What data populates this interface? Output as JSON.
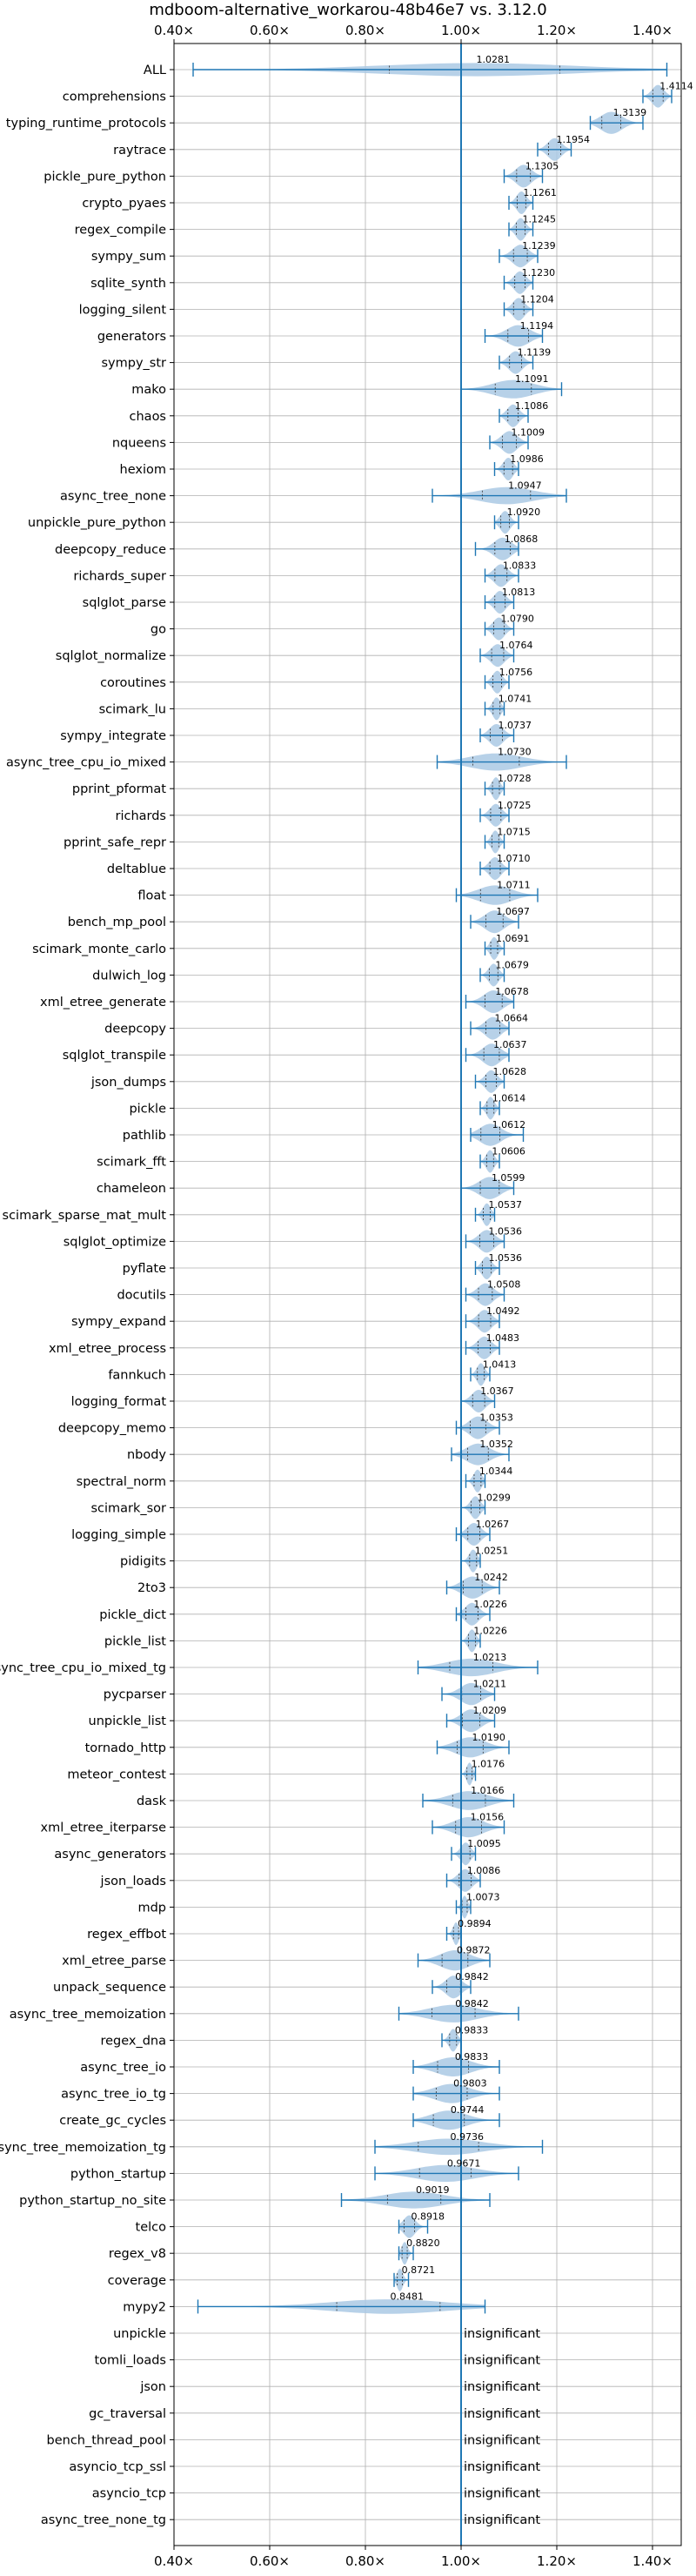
{
  "chart_data": {
    "type": "violin",
    "title": "mdboom-alternative_workarou-48b46e7 vs. 3.12.0",
    "xlim": [
      0.4,
      1.46
    ],
    "xticks": [
      0.4,
      0.6,
      0.8,
      1.0,
      1.2,
      1.4
    ],
    "xtick_labels": [
      "0.40×",
      "0.60×",
      "0.80×",
      "1.00×",
      "1.20×",
      "1.40×"
    ],
    "reference_line": 1.0,
    "grid": true,
    "insignificant_text": "insignificant",
    "colors": {
      "violin": "#aac9e4",
      "line": "#1f77b4"
    },
    "benchmarks": [
      {
        "name": "ALL",
        "value": 1.0281,
        "label": "1.0281",
        "min": 0.44,
        "max": 1.43
      },
      {
        "name": "comprehensions",
        "value": 1.4114,
        "label": "1.4114",
        "min": 1.38,
        "max": 1.44
      },
      {
        "name": "typing_runtime_protocols",
        "value": 1.3139,
        "label": "1.3139",
        "min": 1.27,
        "max": 1.38
      },
      {
        "name": "raytrace",
        "value": 1.1954,
        "label": "1.1954",
        "min": 1.16,
        "max": 1.23
      },
      {
        "name": "pickle_pure_python",
        "value": 1.1305,
        "label": "1.1305",
        "min": 1.09,
        "max": 1.17
      },
      {
        "name": "crypto_pyaes",
        "value": 1.1261,
        "label": "1.1261",
        "min": 1.1,
        "max": 1.15
      },
      {
        "name": "regex_compile",
        "value": 1.1245,
        "label": "1.1245",
        "min": 1.1,
        "max": 1.15
      },
      {
        "name": "sympy_sum",
        "value": 1.1239,
        "label": "1.1239",
        "min": 1.08,
        "max": 1.16
      },
      {
        "name": "sqlite_synth",
        "value": 1.123,
        "label": "1.1230",
        "min": 1.09,
        "max": 1.15
      },
      {
        "name": "logging_silent",
        "value": 1.1204,
        "label": "1.1204",
        "min": 1.09,
        "max": 1.15
      },
      {
        "name": "generators",
        "value": 1.1194,
        "label": "1.1194",
        "min": 1.05,
        "max": 1.17
      },
      {
        "name": "sympy_str",
        "value": 1.1139,
        "label": "1.1139",
        "min": 1.08,
        "max": 1.15
      },
      {
        "name": "mako",
        "value": 1.1091,
        "label": "1.1091",
        "min": 1.0,
        "max": 1.21
      },
      {
        "name": "chaos",
        "value": 1.1086,
        "label": "1.1086",
        "min": 1.08,
        "max": 1.14
      },
      {
        "name": "nqueens",
        "value": 1.1009,
        "label": "1.1009",
        "min": 1.06,
        "max": 1.14
      },
      {
        "name": "hexiom",
        "value": 1.0986,
        "label": "1.0986",
        "min": 1.07,
        "max": 1.12
      },
      {
        "name": "async_tree_none",
        "value": 1.0947,
        "label": "1.0947",
        "min": 0.94,
        "max": 1.22
      },
      {
        "name": "unpickle_pure_python",
        "value": 1.092,
        "label": "1.0920",
        "min": 1.07,
        "max": 1.12
      },
      {
        "name": "deepcopy_reduce",
        "value": 1.0868,
        "label": "1.0868",
        "min": 1.03,
        "max": 1.12
      },
      {
        "name": "richards_super",
        "value": 1.0833,
        "label": "1.0833",
        "min": 1.05,
        "max": 1.12
      },
      {
        "name": "sqlglot_parse",
        "value": 1.0813,
        "label": "1.0813",
        "min": 1.05,
        "max": 1.11
      },
      {
        "name": "go",
        "value": 1.079,
        "label": "1.0790",
        "min": 1.05,
        "max": 1.11
      },
      {
        "name": "sqlglot_normalize",
        "value": 1.0764,
        "label": "1.0764",
        "min": 1.04,
        "max": 1.11
      },
      {
        "name": "coroutines",
        "value": 1.0756,
        "label": "1.0756",
        "min": 1.05,
        "max": 1.1
      },
      {
        "name": "scimark_lu",
        "value": 1.0741,
        "label": "1.0741",
        "min": 1.05,
        "max": 1.09
      },
      {
        "name": "sympy_integrate",
        "value": 1.0737,
        "label": "1.0737",
        "min": 1.04,
        "max": 1.11
      },
      {
        "name": "async_tree_cpu_io_mixed",
        "value": 1.073,
        "label": "1.0730",
        "min": 0.95,
        "max": 1.22
      },
      {
        "name": "pprint_pformat",
        "value": 1.0728,
        "label": "1.0728",
        "min": 1.05,
        "max": 1.09
      },
      {
        "name": "richards",
        "value": 1.0725,
        "label": "1.0725",
        "min": 1.04,
        "max": 1.1
      },
      {
        "name": "pprint_safe_repr",
        "value": 1.0715,
        "label": "1.0715",
        "min": 1.05,
        "max": 1.09
      },
      {
        "name": "deltablue",
        "value": 1.071,
        "label": "1.0710",
        "min": 1.04,
        "max": 1.1
      },
      {
        "name": "float",
        "value": 1.0711,
        "label": "1.0711",
        "min": 0.99,
        "max": 1.16
      },
      {
        "name": "bench_mp_pool",
        "value": 1.0697,
        "label": "1.0697",
        "min": 1.02,
        "max": 1.12
      },
      {
        "name": "scimark_monte_carlo",
        "value": 1.0691,
        "label": "1.0691",
        "min": 1.05,
        "max": 1.09
      },
      {
        "name": "dulwich_log",
        "value": 1.0679,
        "label": "1.0679",
        "min": 1.04,
        "max": 1.09
      },
      {
        "name": "xml_etree_generate",
        "value": 1.0678,
        "label": "1.0678",
        "min": 1.01,
        "max": 1.11
      },
      {
        "name": "deepcopy",
        "value": 1.0664,
        "label": "1.0664",
        "min": 1.02,
        "max": 1.1
      },
      {
        "name": "sqlglot_transpile",
        "value": 1.0637,
        "label": "1.0637",
        "min": 1.01,
        "max": 1.1
      },
      {
        "name": "json_dumps",
        "value": 1.0628,
        "label": "1.0628",
        "min": 1.03,
        "max": 1.09
      },
      {
        "name": "pickle",
        "value": 1.0614,
        "label": "1.0614",
        "min": 1.04,
        "max": 1.08
      },
      {
        "name": "pathlib",
        "value": 1.0612,
        "label": "1.0612",
        "min": 1.02,
        "max": 1.13
      },
      {
        "name": "scimark_fft",
        "value": 1.0606,
        "label": "1.0606",
        "min": 1.04,
        "max": 1.08
      },
      {
        "name": "chameleon",
        "value": 1.0599,
        "label": "1.0599",
        "min": 1.0,
        "max": 1.11
      },
      {
        "name": "scimark_sparse_mat_mult",
        "value": 1.0537,
        "label": "1.0537",
        "min": 1.03,
        "max": 1.07
      },
      {
        "name": "sqlglot_optimize",
        "value": 1.0536,
        "label": "1.0536",
        "min": 1.01,
        "max": 1.09
      },
      {
        "name": "pyflate",
        "value": 1.0536,
        "label": "1.0536",
        "min": 1.03,
        "max": 1.08
      },
      {
        "name": "docutils",
        "value": 1.0508,
        "label": "1.0508",
        "min": 1.01,
        "max": 1.09
      },
      {
        "name": "sympy_expand",
        "value": 1.0492,
        "label": "1.0492",
        "min": 1.01,
        "max": 1.08
      },
      {
        "name": "xml_etree_process",
        "value": 1.0483,
        "label": "1.0483",
        "min": 1.01,
        "max": 1.08
      },
      {
        "name": "fannkuch",
        "value": 1.0413,
        "label": "1.0413",
        "min": 1.02,
        "max": 1.06
      },
      {
        "name": "logging_format",
        "value": 1.0367,
        "label": "1.0367",
        "min": 1.0,
        "max": 1.07
      },
      {
        "name": "deepcopy_memo",
        "value": 1.0353,
        "label": "1.0353",
        "min": 0.99,
        "max": 1.08
      },
      {
        "name": "nbody",
        "value": 1.0352,
        "label": "1.0352",
        "min": 0.98,
        "max": 1.1
      },
      {
        "name": "spectral_norm",
        "value": 1.0344,
        "label": "1.0344",
        "min": 1.01,
        "max": 1.05
      },
      {
        "name": "scimark_sor",
        "value": 1.0299,
        "label": "1.0299",
        "min": 1.0,
        "max": 1.05
      },
      {
        "name": "logging_simple",
        "value": 1.0267,
        "label": "1.0267",
        "min": 0.99,
        "max": 1.06
      },
      {
        "name": "pidigits",
        "value": 1.0251,
        "label": "1.0251",
        "min": 1.0,
        "max": 1.04
      },
      {
        "name": "2to3",
        "value": 1.0242,
        "label": "1.0242",
        "min": 0.97,
        "max": 1.08
      },
      {
        "name": "pickle_dict",
        "value": 1.0226,
        "label": "1.0226",
        "min": 0.99,
        "max": 1.06
      },
      {
        "name": "pickle_list",
        "value": 1.0226,
        "label": "1.0226",
        "min": 1.0,
        "max": 1.04
      },
      {
        "name": "async_tree_cpu_io_mixed_tg",
        "value": 1.0213,
        "label": "1.0213",
        "min": 0.91,
        "max": 1.16
      },
      {
        "name": "pycparser",
        "value": 1.0211,
        "label": "1.0211",
        "min": 0.96,
        "max": 1.07
      },
      {
        "name": "unpickle_list",
        "value": 1.0209,
        "label": "1.0209",
        "min": 0.97,
        "max": 1.07
      },
      {
        "name": "tornado_http",
        "value": 1.019,
        "label": "1.0190",
        "min": 0.95,
        "max": 1.1
      },
      {
        "name": "meteor_contest",
        "value": 1.0176,
        "label": "1.0176",
        "min": 1.0,
        "max": 1.03
      },
      {
        "name": "dask",
        "value": 1.0166,
        "label": "1.0166",
        "min": 0.92,
        "max": 1.11
      },
      {
        "name": "xml_etree_iterparse",
        "value": 1.0156,
        "label": "1.0156",
        "min": 0.94,
        "max": 1.09
      },
      {
        "name": "async_generators",
        "value": 1.0095,
        "label": "1.0095",
        "min": 0.98,
        "max": 1.03
      },
      {
        "name": "json_loads",
        "value": 1.0086,
        "label": "1.0086",
        "min": 0.97,
        "max": 1.04
      },
      {
        "name": "mdp",
        "value": 1.0073,
        "label": "1.0073",
        "min": 0.99,
        "max": 1.02
      },
      {
        "name": "regex_effbot",
        "value": 0.9894,
        "label": "0.9894",
        "min": 0.97,
        "max": 1.0
      },
      {
        "name": "xml_etree_parse",
        "value": 0.9872,
        "label": "0.9872",
        "min": 0.91,
        "max": 1.06
      },
      {
        "name": "unpack_sequence",
        "value": 0.9842,
        "label": "0.9842",
        "min": 0.94,
        "max": 1.02
      },
      {
        "name": "async_tree_memoization",
        "value": 0.9842,
        "label": "0.9842",
        "min": 0.87,
        "max": 1.12
      },
      {
        "name": "regex_dna",
        "value": 0.9833,
        "label": "0.9833",
        "min": 0.96,
        "max": 1.0
      },
      {
        "name": "async_tree_io",
        "value": 0.9833,
        "label": "0.9833",
        "min": 0.9,
        "max": 1.08
      },
      {
        "name": "async_tree_io_tg",
        "value": 0.9803,
        "label": "0.9803",
        "min": 0.9,
        "max": 1.08
      },
      {
        "name": "create_gc_cycles",
        "value": 0.9744,
        "label": "0.9744",
        "min": 0.9,
        "max": 1.08
      },
      {
        "name": "async_tree_memoization_tg",
        "value": 0.9736,
        "label": "0.9736",
        "min": 0.82,
        "max": 1.17
      },
      {
        "name": "python_startup",
        "value": 0.9671,
        "label": "0.9671",
        "min": 0.82,
        "max": 1.12
      },
      {
        "name": "python_startup_no_site",
        "value": 0.9019,
        "label": "0.9019",
        "min": 0.75,
        "max": 1.06
      },
      {
        "name": "telco",
        "value": 0.8918,
        "label": "0.8918",
        "min": 0.87,
        "max": 0.93
      },
      {
        "name": "regex_v8",
        "value": 0.882,
        "label": "0.8820",
        "min": 0.87,
        "max": 0.9
      },
      {
        "name": "coverage",
        "value": 0.8721,
        "label": "0.8721",
        "min": 0.86,
        "max": 0.89
      },
      {
        "name": "mypy2",
        "value": 0.8481,
        "label": "0.8481",
        "min": 0.45,
        "max": 1.05
      },
      {
        "name": "unpickle",
        "value": null,
        "label": "insignificant"
      },
      {
        "name": "tomli_loads",
        "value": null,
        "label": "insignificant"
      },
      {
        "name": "json",
        "value": null,
        "label": "insignificant"
      },
      {
        "name": "gc_traversal",
        "value": null,
        "label": "insignificant"
      },
      {
        "name": "bench_thread_pool",
        "value": null,
        "label": "insignificant"
      },
      {
        "name": "asyncio_tcp_ssl",
        "value": null,
        "label": "insignificant"
      },
      {
        "name": "asyncio_tcp",
        "value": null,
        "label": "insignificant"
      },
      {
        "name": "async_tree_none_tg",
        "value": null,
        "label": "insignificant"
      }
    ]
  }
}
